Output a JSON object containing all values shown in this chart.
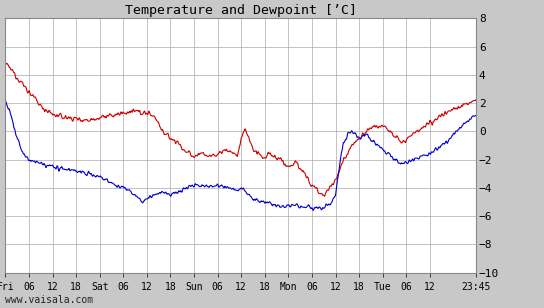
{
  "title": "Temperature and Dewpoint [’C]",
  "ylim": [
    -10,
    8
  ],
  "yticks": [
    -10,
    -8,
    -6,
    -4,
    -2,
    0,
    2,
    4,
    6,
    8
  ],
  "plot_bg_color": "#ffffff",
  "outer_bg_color": "#c8c8c8",
  "grid_color": "#aaaaaa",
  "temp_color": "#cc0000",
  "dew_color": "#0000cc",
  "watermark": "www.vaisala.com",
  "x_labels": [
    "Fri",
    "06",
    "12",
    "18",
    "Sat",
    "06",
    "12",
    "18",
    "Sun",
    "06",
    "12",
    "18",
    "Mon",
    "06",
    "12",
    "18",
    "Tue",
    "06",
    "12",
    "23:45"
  ],
  "tick_hours": [
    0,
    6,
    12,
    18,
    24,
    30,
    36,
    42,
    48,
    54,
    60,
    66,
    72,
    78,
    84,
    90,
    96,
    102,
    108,
    119.75
  ],
  "num_points": 1440,
  "temp_waypoints": [
    [
      0,
      4.8
    ],
    [
      2,
      4.2
    ],
    [
      4,
      3.5
    ],
    [
      6,
      2.8
    ],
    [
      9,
      1.8
    ],
    [
      12,
      1.2
    ],
    [
      15,
      1.0
    ],
    [
      18,
      0.9
    ],
    [
      21,
      0.8
    ],
    [
      24,
      1.0
    ],
    [
      27,
      1.1
    ],
    [
      30,
      1.3
    ],
    [
      33,
      1.4
    ],
    [
      36,
      1.3
    ],
    [
      38,
      1.1
    ],
    [
      40,
      0.0
    ],
    [
      42,
      -0.5
    ],
    [
      44,
      -0.8
    ],
    [
      45,
      -1.2
    ],
    [
      46,
      -1.5
    ],
    [
      47,
      -1.6
    ],
    [
      48,
      -1.8
    ],
    [
      50,
      -1.5
    ],
    [
      52,
      -1.8
    ],
    [
      54,
      -1.6
    ],
    [
      56,
      -1.3
    ],
    [
      58,
      -1.5
    ],
    [
      59,
      -1.8
    ],
    [
      60,
      -0.5
    ],
    [
      61,
      0.2
    ],
    [
      62,
      -0.5
    ],
    [
      63,
      -1.3
    ],
    [
      64,
      -1.5
    ],
    [
      65,
      -1.8
    ],
    [
      66,
      -1.9
    ],
    [
      67,
      -1.5
    ],
    [
      68,
      -1.8
    ],
    [
      70,
      -2.0
    ],
    [
      72,
      -2.5
    ],
    [
      74,
      -2.2
    ],
    [
      76,
      -3.0
    ],
    [
      78,
      -3.8
    ],
    [
      80,
      -4.3
    ],
    [
      81,
      -4.5
    ],
    [
      82,
      -4.2
    ],
    [
      83,
      -3.8
    ],
    [
      84,
      -3.5
    ],
    [
      85,
      -2.8
    ],
    [
      86,
      -2.0
    ],
    [
      87,
      -1.5
    ],
    [
      88,
      -1.0
    ],
    [
      90,
      -0.5
    ],
    [
      92,
      0.0
    ],
    [
      93,
      0.2
    ],
    [
      94,
      0.3
    ],
    [
      96,
      0.5
    ],
    [
      97,
      0.3
    ],
    [
      98,
      0.0
    ],
    [
      99,
      -0.3
    ],
    [
      100,
      -0.5
    ],
    [
      101,
      -0.8
    ],
    [
      102,
      -0.5
    ],
    [
      103,
      -0.3
    ],
    [
      104,
      -0.2
    ],
    [
      105,
      0.0
    ],
    [
      106,
      0.2
    ],
    [
      108,
      0.5
    ],
    [
      110,
      1.0
    ],
    [
      112,
      1.3
    ],
    [
      114,
      1.6
    ],
    [
      116,
      1.8
    ],
    [
      118,
      2.0
    ],
    [
      119.75,
      2.2
    ]
  ],
  "dew_waypoints": [
    [
      0,
      2.2
    ],
    [
      1,
      1.5
    ],
    [
      2,
      0.5
    ],
    [
      3,
      -0.5
    ],
    [
      4,
      -1.2
    ],
    [
      5,
      -1.8
    ],
    [
      6,
      -2.0
    ],
    [
      8,
      -2.2
    ],
    [
      10,
      -2.4
    ],
    [
      12,
      -2.5
    ],
    [
      15,
      -2.7
    ],
    [
      18,
      -2.8
    ],
    [
      21,
      -3.0
    ],
    [
      24,
      -3.2
    ],
    [
      26,
      -3.5
    ],
    [
      28,
      -3.8
    ],
    [
      30,
      -4.0
    ],
    [
      32,
      -4.3
    ],
    [
      33,
      -4.5
    ],
    [
      34,
      -4.8
    ],
    [
      35,
      -5.0
    ],
    [
      36,
      -4.8
    ],
    [
      38,
      -4.5
    ],
    [
      40,
      -4.3
    ],
    [
      42,
      -4.5
    ],
    [
      44,
      -4.3
    ],
    [
      46,
      -4.0
    ],
    [
      48,
      -3.8
    ],
    [
      50,
      -3.8
    ],
    [
      52,
      -3.9
    ],
    [
      54,
      -3.8
    ],
    [
      56,
      -3.9
    ],
    [
      57,
      -4.0
    ],
    [
      58,
      -4.1
    ],
    [
      59,
      -4.2
    ],
    [
      60,
      -4.0
    ],
    [
      61,
      -4.2
    ],
    [
      62,
      -4.5
    ],
    [
      63,
      -4.8
    ],
    [
      64,
      -4.9
    ],
    [
      65,
      -5.0
    ],
    [
      66,
      -5.1
    ],
    [
      67,
      -5.0
    ],
    [
      68,
      -5.2
    ],
    [
      70,
      -5.3
    ],
    [
      72,
      -5.3
    ],
    [
      74,
      -5.2
    ],
    [
      76,
      -5.3
    ],
    [
      78,
      -5.4
    ],
    [
      79,
      -5.5
    ],
    [
      80,
      -5.5
    ],
    [
      81,
      -5.4
    ],
    [
      82,
      -5.3
    ],
    [
      83,
      -5.0
    ],
    [
      84,
      -4.5
    ],
    [
      84.5,
      -3.5
    ],
    [
      85,
      -2.5
    ],
    [
      85.5,
      -1.5
    ],
    [
      86,
      -0.8
    ],
    [
      87,
      -0.3
    ],
    [
      88,
      0.0
    ],
    [
      89,
      -0.2
    ],
    [
      90,
      -0.5
    ],
    [
      91,
      -0.3
    ],
    [
      92,
      -0.2
    ],
    [
      93,
      -0.5
    ],
    [
      94,
      -0.8
    ],
    [
      95,
      -1.0
    ],
    [
      96,
      -1.2
    ],
    [
      97,
      -1.5
    ],
    [
      98,
      -1.8
    ],
    [
      99,
      -2.0
    ],
    [
      100,
      -2.2
    ],
    [
      101,
      -2.3
    ],
    [
      102,
      -2.2
    ],
    [
      103,
      -2.1
    ],
    [
      104,
      -2.0
    ],
    [
      105,
      -1.9
    ],
    [
      106,
      -1.8
    ],
    [
      107,
      -1.7
    ],
    [
      108,
      -1.6
    ],
    [
      110,
      -1.2
    ],
    [
      112,
      -0.8
    ],
    [
      114,
      -0.2
    ],
    [
      116,
      0.3
    ],
    [
      118,
      0.8
    ],
    [
      119.75,
      1.2
    ]
  ]
}
